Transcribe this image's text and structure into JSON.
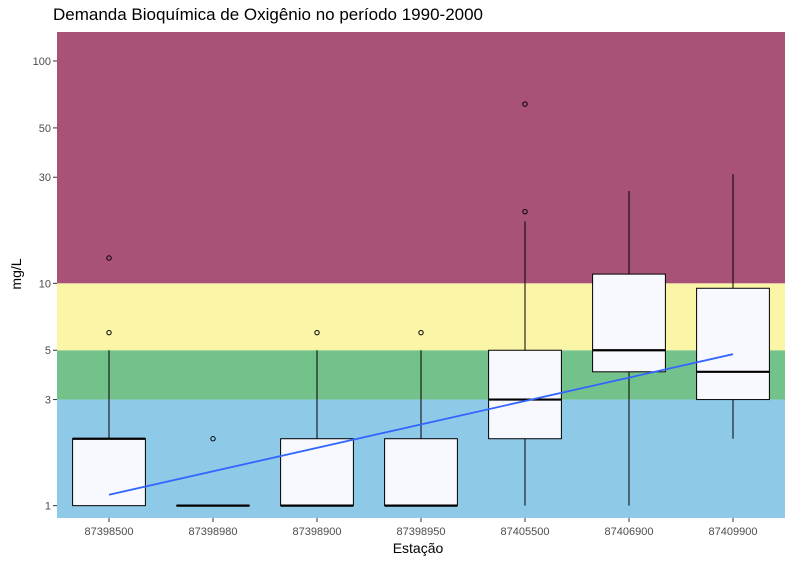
{
  "chart_data": {
    "type": "box",
    "title": "Demanda Bioquímica de Oxigênio no período 1990-2000",
    "xlabel": "Estação",
    "ylabel": "mg/L",
    "yscale": "log",
    "ylim": [
      0.88,
      135
    ],
    "yticks": [
      1,
      3,
      5,
      10,
      30,
      50,
      100
    ],
    "grid": false,
    "bands": [
      {
        "from": 0.88,
        "to": 3,
        "color": "#8ecae8"
      },
      {
        "from": 3,
        "to": 5,
        "color": "#74c28b"
      },
      {
        "from": 5,
        "to": 10,
        "color": "#fbf5a8"
      },
      {
        "from": 10,
        "to": 135,
        "color": "#a95277"
      }
    ],
    "categories": [
      "87398500",
      "87398980",
      "87398900",
      "87398950",
      "87405500",
      "87406900",
      "87409900"
    ],
    "boxes": [
      {
        "q1": 1,
        "median": 2,
        "q3": 2,
        "whisker_low": 1,
        "whisker_high": 5,
        "outliers": [
          6,
          13
        ]
      },
      {
        "q1": 1,
        "median": 1,
        "q3": 1,
        "whisker_low": 1,
        "whisker_high": 1,
        "outliers": [
          2
        ]
      },
      {
        "q1": 1,
        "median": 1,
        "q3": 2,
        "whisker_low": 1,
        "whisker_high": 5,
        "outliers": [
          6
        ]
      },
      {
        "q1": 1,
        "median": 1,
        "q3": 2,
        "whisker_low": 1,
        "whisker_high": 5,
        "outliers": [
          6
        ]
      },
      {
        "q1": 2,
        "median": 3,
        "q3": 5,
        "whisker_low": 1,
        "whisker_high": 19,
        "outliers": [
          21,
          64
        ]
      },
      {
        "q1": 4,
        "median": 5,
        "q3": 11,
        "whisker_low": 1,
        "whisker_high": 26,
        "outliers": []
      },
      {
        "q1": 3,
        "median": 4,
        "q3": 9.5,
        "whisker_low": 2,
        "whisker_high": 31,
        "outliers": []
      }
    ],
    "trend_line": {
      "color": "#3366ff",
      "start": 1.12,
      "end": 4.8
    },
    "box_fill": "#f8f8ff"
  }
}
